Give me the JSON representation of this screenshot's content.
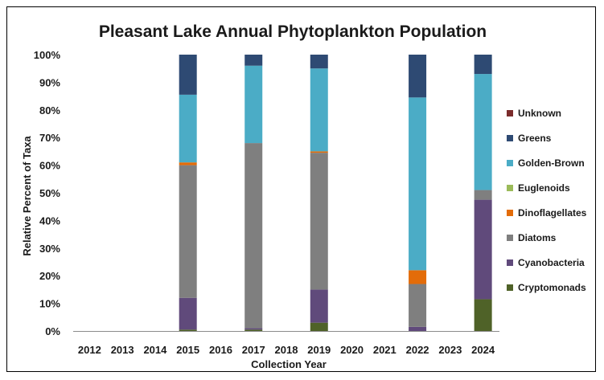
{
  "chart_data": {
    "type": "bar",
    "stacked": true,
    "title": "Pleasant Lake Annual Phytoplankton Population",
    "xlabel": "Collection Year",
    "ylabel": "Relative Percent of Taxa",
    "ylim": [
      0,
      100
    ],
    "y_ticks": [
      "0%",
      "10%",
      "20%",
      "30%",
      "40%",
      "50%",
      "60%",
      "70%",
      "80%",
      "90%",
      "100%"
    ],
    "categories": [
      "2012",
      "2013",
      "2014",
      "2015",
      "2016",
      "2017",
      "2018",
      "2019",
      "2020",
      "2021",
      "2022",
      "2023",
      "2024"
    ],
    "grid": false,
    "legend_position": "right",
    "series": [
      {
        "name": "Cryptomonads",
        "color": "#4f6228",
        "values": [
          null,
          null,
          null,
          0.5,
          null,
          0.5,
          null,
          3,
          null,
          null,
          0,
          null,
          11.5
        ]
      },
      {
        "name": "Cyanobacteria",
        "color": "#604a7b",
        "values": [
          null,
          null,
          null,
          11.5,
          null,
          0.5,
          null,
          12,
          null,
          null,
          1.5,
          null,
          36
        ]
      },
      {
        "name": "Diatoms",
        "color": "#7f7f7f",
        "values": [
          null,
          null,
          null,
          48,
          null,
          67,
          null,
          49.5,
          null,
          null,
          15.5,
          null,
          3.5
        ]
      },
      {
        "name": "Dinoflagellates",
        "color": "#e36c09",
        "values": [
          null,
          null,
          null,
          1,
          null,
          0,
          null,
          0.5,
          null,
          null,
          5,
          null,
          0
        ]
      },
      {
        "name": "Euglenoids",
        "color": "#9bbb59",
        "values": [
          null,
          null,
          null,
          0,
          null,
          0,
          null,
          0,
          null,
          null,
          0,
          null,
          0
        ]
      },
      {
        "name": "Golden-Brown",
        "color": "#4bacc6",
        "values": [
          null,
          null,
          null,
          24.5,
          null,
          28,
          null,
          30,
          null,
          null,
          62.5,
          null,
          42
        ]
      },
      {
        "name": "Greens",
        "color": "#2e4a73",
        "values": [
          null,
          null,
          null,
          14.5,
          null,
          4,
          null,
          5,
          null,
          null,
          15.5,
          null,
          7
        ]
      },
      {
        "name": "Unknown",
        "color": "#7b2c2c",
        "values": [
          null,
          null,
          null,
          0,
          null,
          0,
          null,
          0,
          null,
          null,
          0,
          null,
          0
        ]
      }
    ]
  }
}
